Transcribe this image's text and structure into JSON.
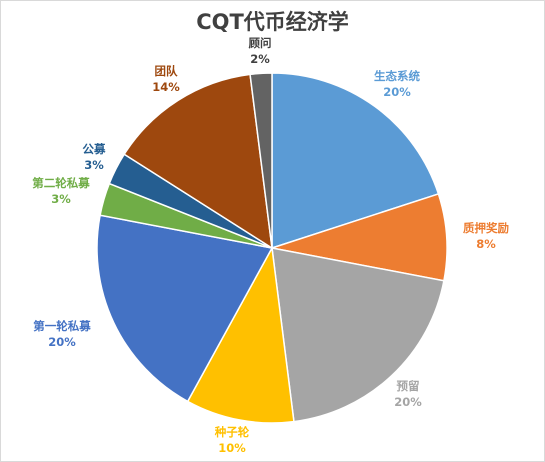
{
  "chart_data": {
    "type": "pie",
    "title": "CQT代币经济学",
    "slices": [
      {
        "label": "生态系统",
        "value": 20,
        "value_label": "20%",
        "color": "#5b9bd5"
      },
      {
        "label": "质押奖励",
        "value": 8,
        "value_label": "8%",
        "color": "#ed7d31"
      },
      {
        "label": "预留",
        "value": 20,
        "value_label": "20%",
        "color": "#a5a5a5"
      },
      {
        "label": "种子轮",
        "value": 10,
        "value_label": "10%",
        "color": "#ffc000"
      },
      {
        "label": "第一轮私募",
        "value": 20,
        "value_label": "20%",
        "color": "#4472c4"
      },
      {
        "label": "第二轮私募",
        "value": 3,
        "value_label": "3%",
        "color": "#70ad47"
      },
      {
        "label": "公募",
        "value": 3,
        "value_label": "3%",
        "color": "#255e91"
      },
      {
        "label": "团队",
        "value": 14,
        "value_label": "14%",
        "color": "#9e480e"
      },
      {
        "label": "顾问",
        "value": 2,
        "value_label": "2%",
        "color": "#636363"
      }
    ],
    "label_colors": [
      "#5b9bd5",
      "#ed7d31",
      "#a5a5a5",
      "#ffc000",
      "#4472c4",
      "#70ad47",
      "#255e91",
      "#9e480e",
      "#404040"
    ],
    "start_angle": "12 o'clock",
    "direction": "clockwise",
    "legend": "none"
  }
}
